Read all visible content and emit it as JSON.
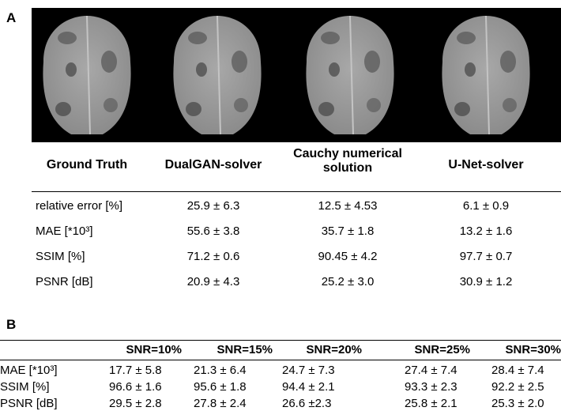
{
  "panel_a": {
    "label": "A",
    "header": [
      "Ground Truth",
      "DualGAN-solver",
      "Cauchy numerical solution",
      "U-Net-solver"
    ],
    "rows": [
      [
        "relative error [%]",
        "25.9 ± 6.3",
        "12.5 ± 4.53",
        "6.1 ± 0.9"
      ],
      [
        "MAE [*10³]",
        "55.6 ± 3.8",
        "35.7 ± 1.8",
        "13.2 ± 1.6"
      ],
      [
        "SSIM [%]",
        "71.2 ± 0.6",
        "90.45 ± 4.2",
        "97.7 ± 0.7"
      ],
      [
        "PSNR [dB]",
        "20.9 ± 4.3",
        "25.2 ± 3.0",
        "30.9 ± 1.2"
      ]
    ]
  },
  "panel_b": {
    "label": "B",
    "header": [
      "SNR=10%",
      "SNR=15%",
      "SNR=20%",
      "SNR=25%",
      "SNR=30%"
    ],
    "rows": [
      [
        "MAE [*10³]",
        "17.7 ± 5.8",
        "21.3 ± 6.4",
        "24.7 ± 7.3",
        "27.4 ± 7.4",
        "28.4 ± 7.4"
      ],
      [
        "SSIM [%]",
        "96.6 ± 1.6",
        "95.6 ± 1.8",
        "94.4 ± 2.1",
        "93.3 ± 2.3",
        "92.2 ± 2.5"
      ],
      [
        "PSNR [dB]",
        "29.5 ± 2.8",
        "27.8 ± 2.4",
        "26.6 ±2.3",
        "25.8 ± 2.1",
        "25.3 ± 2.0"
      ]
    ]
  }
}
